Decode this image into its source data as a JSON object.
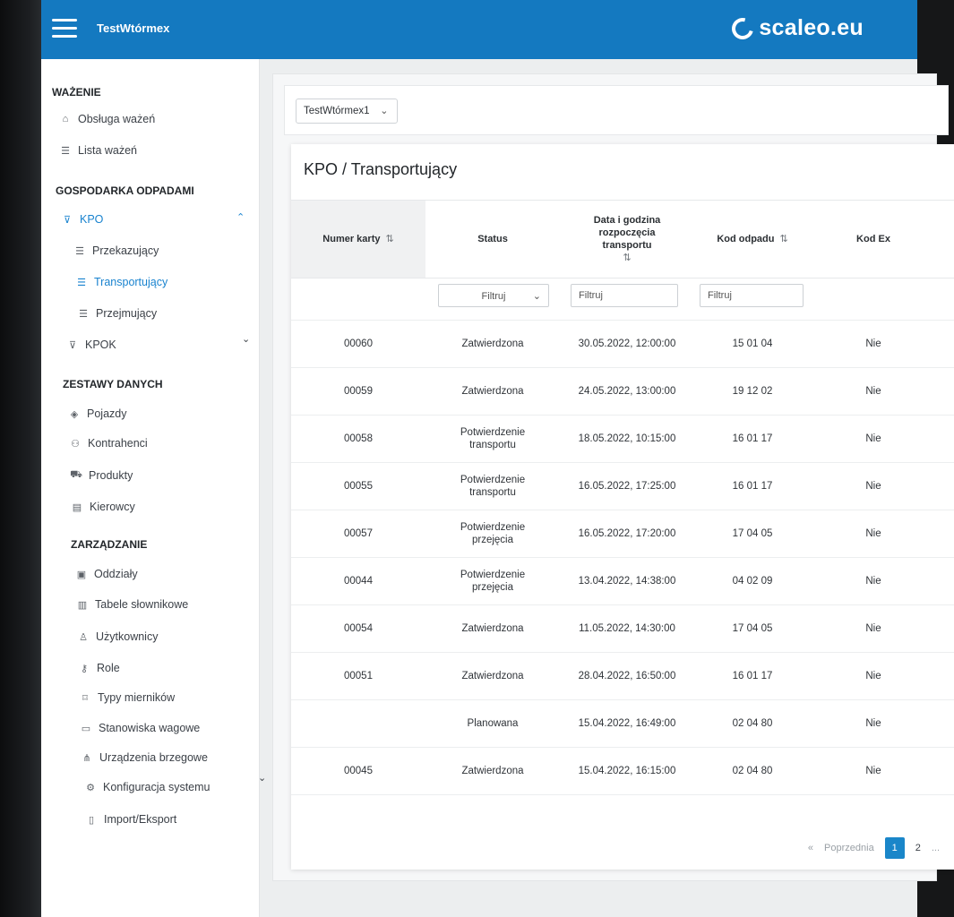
{
  "header": {
    "app_title": "TestWtórmex",
    "brand": "scaleo.eu"
  },
  "sidebar": {
    "sections": [
      {
        "title": "WAŻENIE",
        "items": [
          {
            "label": "Obsługa ważeń",
            "icon": "home-icon"
          },
          {
            "label": "Lista ważeń",
            "icon": "list-icon"
          }
        ]
      },
      {
        "title": "GOSPODARKA ODPADAMI",
        "items": [
          {
            "label": "KPO",
            "icon": "filter-icon",
            "active": true,
            "expanded": true
          },
          {
            "label": "Przekazujący",
            "icon": "list-icon"
          },
          {
            "label": "Transportujący",
            "icon": "list-icon",
            "active": true
          },
          {
            "label": "Przejmujący",
            "icon": "list-icon"
          },
          {
            "label": "KPOK",
            "icon": "filter-icon"
          }
        ]
      },
      {
        "title": "ZESTAWY DANYCH",
        "items": [
          {
            "label": "Pojazdy",
            "icon": "vehicle-icon"
          },
          {
            "label": "Kontrahenci",
            "icon": "users-icon"
          },
          {
            "label": "Produkty",
            "icon": "cart-icon"
          },
          {
            "label": "Kierowcy",
            "icon": "id-card-icon"
          }
        ]
      },
      {
        "title": "ZARZĄDZANIE",
        "items": [
          {
            "label": "Oddziały",
            "icon": "building-icon"
          },
          {
            "label": "Tabele słownikowe",
            "icon": "book-icon"
          },
          {
            "label": "Użytkownicy",
            "icon": "user-icon"
          },
          {
            "label": "Role",
            "icon": "key-icon"
          },
          {
            "label": "Typy mierników",
            "icon": "bookmark-icon"
          },
          {
            "label": "Stanowiska wagowe",
            "icon": "monitor-icon"
          },
          {
            "label": "Urządzenia brzegowe",
            "icon": "devices-icon"
          },
          {
            "label": "Konfiguracja systemu",
            "icon": "gear-icon"
          },
          {
            "label": "Import/Eksport",
            "icon": "file-icon"
          }
        ]
      }
    ]
  },
  "main": {
    "company_select": "TestWtórmex1",
    "card_title": "KPO / Transportujący",
    "columns": [
      {
        "label": "Numer karty",
        "sortable": true,
        "sorted": true
      },
      {
        "label": "Status",
        "sortable": false
      },
      {
        "label": "Data i godzina rozpoczęcia transportu",
        "sortable": true
      },
      {
        "label": "Kod odpadu",
        "sortable": true
      },
      {
        "label": "Kod Ex",
        "sortable": false
      }
    ],
    "filters": {
      "status_placeholder": "Filtruj",
      "date_placeholder": "Filtruj",
      "code_placeholder": "Filtruj"
    },
    "rows": [
      {
        "numer": "00060",
        "status": "Zatwierdzona",
        "data": "30.05.2022, 12:00:00",
        "kod": "15 01 04",
        "kod_ex": "Nie"
      },
      {
        "numer": "00059",
        "status": "Zatwierdzona",
        "data": "24.05.2022, 13:00:00",
        "kod": "19 12 02",
        "kod_ex": "Nie"
      },
      {
        "numer": "00058",
        "status": "Potwierdzenie transportu",
        "data": "18.05.2022, 10:15:00",
        "kod": "16 01 17",
        "kod_ex": "Nie"
      },
      {
        "numer": "00055",
        "status": "Potwierdzenie transportu",
        "data": "16.05.2022, 17:25:00",
        "kod": "16 01 17",
        "kod_ex": "Nie"
      },
      {
        "numer": "00057",
        "status": "Potwierdzenie przejęcia",
        "data": "16.05.2022, 17:20:00",
        "kod": "17 04 05",
        "kod_ex": "Nie"
      },
      {
        "numer": "00044",
        "status": "Potwierdzenie przejęcia",
        "data": "13.04.2022, 14:38:00",
        "kod": "04 02 09",
        "kod_ex": "Nie"
      },
      {
        "numer": "00054",
        "status": "Zatwierdzona",
        "data": "11.05.2022, 14:30:00",
        "kod": "17 04 05",
        "kod_ex": "Nie"
      },
      {
        "numer": "00051",
        "status": "Zatwierdzona",
        "data": "28.04.2022, 16:50:00",
        "kod": "16 01 17",
        "kod_ex": "Nie"
      },
      {
        "numer": "",
        "status": "Planowana",
        "data": "15.04.2022, 16:49:00",
        "kod": "02 04 80",
        "kod_ex": "Nie"
      },
      {
        "numer": "00045",
        "status": "Zatwierdzona",
        "data": "15.04.2022, 16:15:00",
        "kod": "02 04 80",
        "kod_ex": "Nie"
      }
    ],
    "pagination": {
      "first": "«",
      "prev": "Poprzednia",
      "pages": [
        "1",
        "2"
      ],
      "current": "1",
      "more": "..."
    }
  }
}
